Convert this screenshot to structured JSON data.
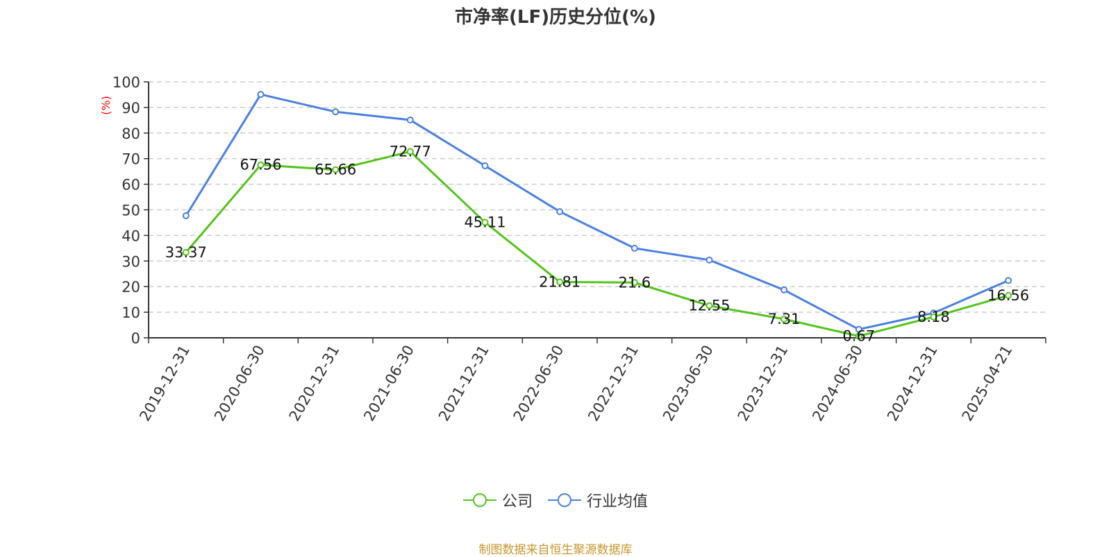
{
  "title": "市净率(LF)历史分位(%)",
  "y_axis_unit": "(%)",
  "legend": [
    {
      "label": "公司",
      "color": "#52c41a"
    },
    {
      "label": "行业均值",
      "color": "#4a7fde"
    }
  ],
  "source": "制图数据来自恒生聚源数据库",
  "chart_data": {
    "type": "line",
    "title": "市净率(LF)历史分位(%)",
    "xlabel": "",
    "ylabel": "(%)",
    "ylim": [
      0,
      100
    ],
    "yticks": [
      0,
      10,
      20,
      30,
      40,
      50,
      60,
      70,
      80,
      90,
      100
    ],
    "grid": true,
    "legend_position": "bottom",
    "categories": [
      "2019-12-31",
      "2020-06-30",
      "2020-12-31",
      "2021-06-30",
      "2021-12-31",
      "2022-06-30",
      "2022-12-31",
      "2023-06-30",
      "2023-12-31",
      "2024-06-30",
      "2024-12-31",
      "2025-04-21"
    ],
    "series": [
      {
        "name": "公司",
        "color": "#52c41a",
        "show_labels": true,
        "values": [
          33.37,
          67.56,
          65.66,
          72.77,
          45.11,
          21.81,
          21.6,
          12.55,
          7.31,
          0.67,
          8.18,
          16.56
        ]
      },
      {
        "name": "行业均值",
        "color": "#4a7fde",
        "show_labels": false,
        "values": [
          47.7,
          95.1,
          88.3,
          85.1,
          67.2,
          49.3,
          35.0,
          30.4,
          18.7,
          3.3,
          9.7,
          22.4
        ]
      }
    ]
  }
}
